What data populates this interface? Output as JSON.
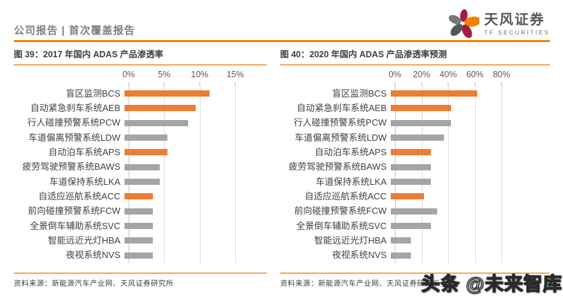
{
  "page": {
    "header": {
      "label": "公司报告 | 首次覆盖报告"
    },
    "logo": {
      "name_cn": "天风证券",
      "name_en": "TF SECURITIES"
    },
    "watermark": "头条 @未来智库"
  },
  "colors": {
    "header_rule": "#F08300",
    "title_rule": "#F5A75C",
    "bar_highlight": "#ED7D31",
    "bar_default": "#A5A5A5",
    "logo_red": "#A11C3E",
    "logo_orange": "#F08300",
    "logo_gray": "#58595B"
  },
  "chart_data": [
    {
      "type": "bar",
      "orientation": "horizontal",
      "title": "图 39：2017 年国内 ADAS 产品渗透率",
      "categories": [
        "盲区监测BCS",
        "自动紧急刹车系统AEB",
        "行人碰撞预警系统PCW",
        "车道偏离预警系统LDW",
        "自动泊车系统APS",
        "疲劳驾驶预警系统BAWS",
        "车道保持系统LKA",
        "自适应巡航系统ACC",
        "前向碰撞预警系统FCW",
        "全景倒车辅助系统SVC",
        "智能远近光灯HBA",
        "夜视系统NVS"
      ],
      "values": [
        12,
        10,
        9,
        6,
        6,
        5,
        5,
        4,
        4,
        4,
        4,
        4
      ],
      "unit": "%",
      "xlim": [
        0,
        15
      ],
      "ticks": [
        "0%",
        "5%",
        "10%",
        "15%"
      ],
      "bar_colors": [
        "orange",
        "orange",
        "gray",
        "gray",
        "orange",
        "gray",
        "gray",
        "orange",
        "gray",
        "gray",
        "gray",
        "gray"
      ],
      "grid": true,
      "legend": false,
      "axis_position": "top",
      "source": "资料来源：新能源汽车产业网、天风证券研究所"
    },
    {
      "type": "bar",
      "orientation": "horizontal",
      "title": "图 40：2020 年国内 ADAS 产品渗透率预测",
      "categories": [
        "盲区监测BCS",
        "自动紧急刹车系统AEB",
        "行人碰撞预警系统PCW",
        "车道偏离预警系统LDW",
        "自动泊车系统APS",
        "疲劳驾驶预警系统BAWS",
        "车道保持系统LKA",
        "自适应巡航系统ACC",
        "前向碰撞预警系统FCW",
        "全景倒车辅助系统SVC",
        "智能远近光灯HBA",
        "夜视系统NVS"
      ],
      "values": [
        65,
        45,
        45,
        40,
        30,
        30,
        30,
        25,
        35,
        30,
        15,
        15
      ],
      "unit": "%",
      "xlim": [
        0,
        80
      ],
      "ticks": [
        "0%",
        "20%",
        "40%",
        "60%",
        "80%"
      ],
      "bar_colors": [
        "orange",
        "orange",
        "gray",
        "gray",
        "orange",
        "gray",
        "gray",
        "orange",
        "gray",
        "gray",
        "gray",
        "gray"
      ],
      "grid": true,
      "legend": false,
      "axis_position": "top",
      "source": "资料来源：新能源汽车产业网、天风证券研究所"
    }
  ]
}
